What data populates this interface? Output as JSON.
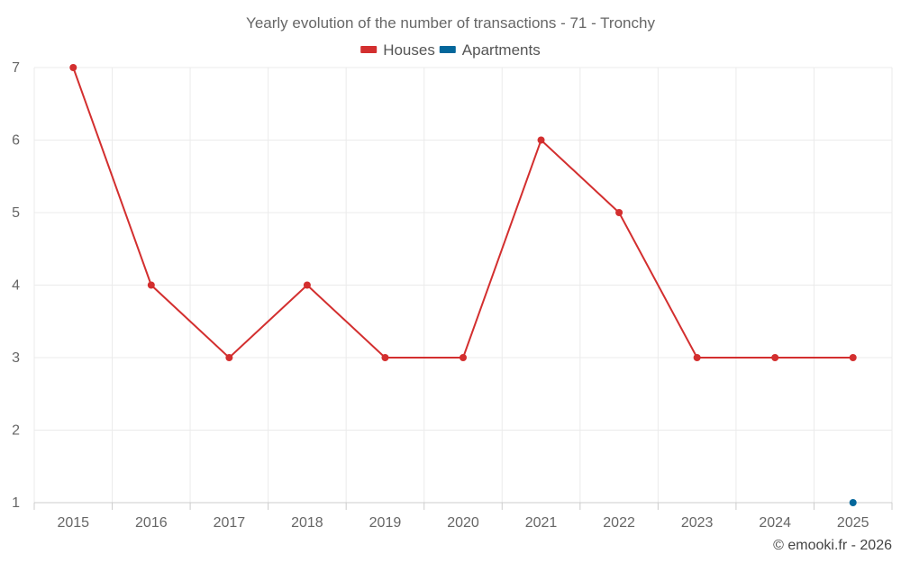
{
  "chart_data": {
    "type": "line",
    "title": "Yearly evolution of the number of transactions - 71 - Tronchy",
    "xlabel": "",
    "ylabel": "",
    "x": [
      "2015",
      "2016",
      "2017",
      "2018",
      "2019",
      "2020",
      "2021",
      "2022",
      "2023",
      "2024",
      "2025"
    ],
    "ylim": [
      1,
      7
    ],
    "yticks": [
      1,
      2,
      3,
      4,
      5,
      6,
      7
    ],
    "grid": true,
    "legend_position": "top",
    "series": [
      {
        "name": "Houses",
        "color": "#d32f2f",
        "values": [
          7,
          4,
          3,
          4,
          3,
          3,
          6,
          5,
          3,
          3,
          3
        ]
      },
      {
        "name": "Apartments",
        "color": "#04679b",
        "values": [
          null,
          null,
          null,
          null,
          null,
          null,
          null,
          null,
          null,
          null,
          1
        ]
      }
    ]
  },
  "credit": "© emooki.fr - 2026"
}
